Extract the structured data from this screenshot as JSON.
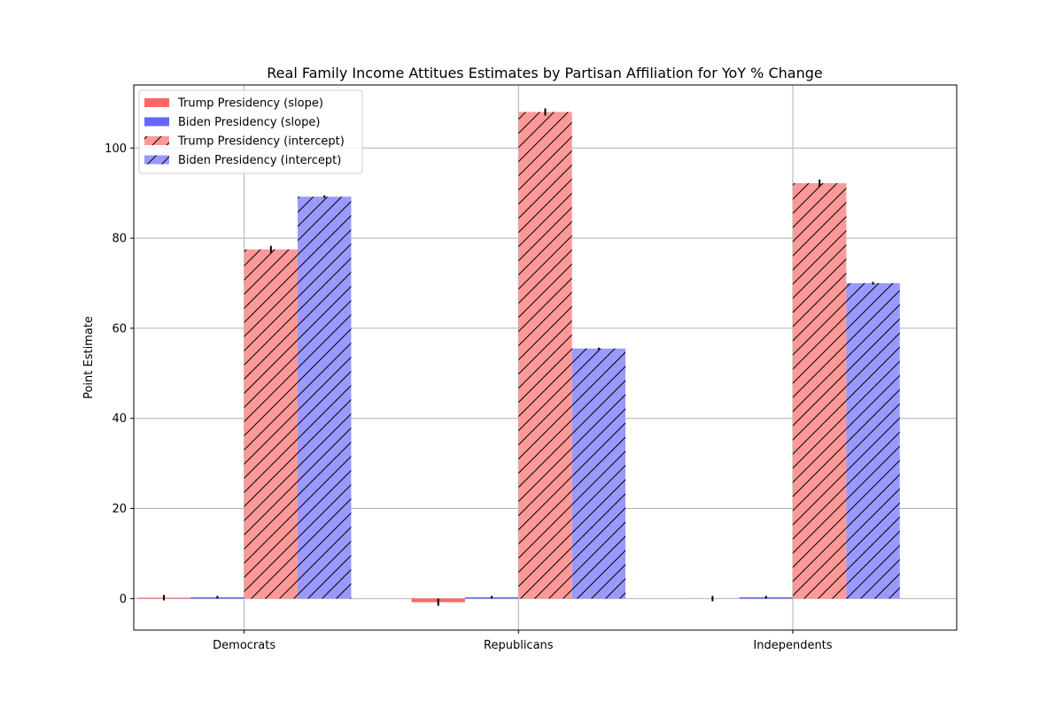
{
  "chart_data": {
    "type": "bar",
    "title": "Real Family Income Attitues Estimates by Partisan Affiliation for YoY % Change",
    "xlabel": "",
    "ylabel": "Point Estimate",
    "categories": [
      "Democrats",
      "Republicans",
      "Independents"
    ],
    "ylim": [
      -7,
      114
    ],
    "yticks": [
      0,
      20,
      40,
      60,
      80,
      100
    ],
    "grid": true,
    "legend_position": "upper-left",
    "series": [
      {
        "name": "Trump Presidency (slope)",
        "values": [
          0.2,
          -0.8,
          0.0
        ],
        "errors": [
          0.6,
          0.8,
          0.6
        ],
        "color": "#ff6666",
        "hatch": false
      },
      {
        "name": "Biden Presidency (slope)",
        "values": [
          0.3,
          0.3,
          0.3
        ],
        "errors": [
          0.3,
          0.3,
          0.3
        ],
        "color": "#6666ff",
        "hatch": false
      },
      {
        "name": "Trump Presidency (intercept)",
        "values": [
          77.5,
          108.0,
          92.2
        ],
        "errors": [
          0.8,
          0.8,
          0.8
        ],
        "color": "#ff9999",
        "hatch": true
      },
      {
        "name": "Biden Presidency (intercept)",
        "values": [
          89.2,
          55.5,
          70.0
        ],
        "errors": [
          0.3,
          0.2,
          0.3
        ],
        "color": "#9999ff",
        "hatch": true
      }
    ]
  }
}
